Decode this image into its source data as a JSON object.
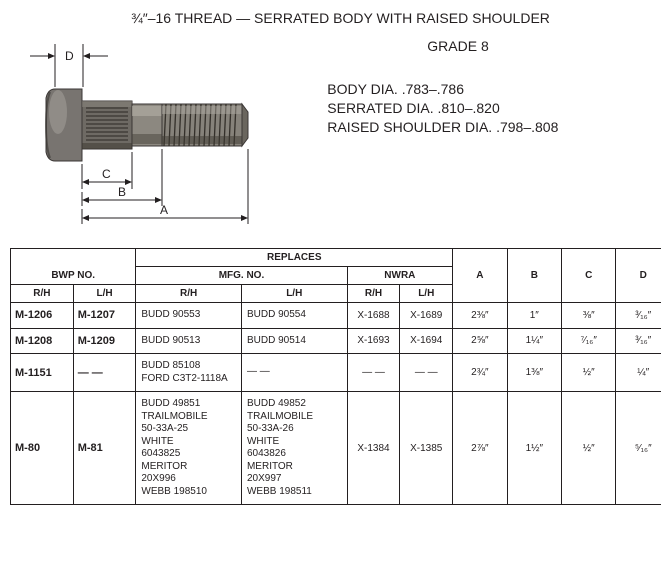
{
  "header": {
    "title": "¾″–16 THREAD — SERRATED BODY WITH RAISED SHOULDER",
    "grade": "GRADE 8",
    "spec1": "BODY DIA. .783–.786",
    "spec2": "SERRATED DIA. .810–.820",
    "spec3": "RAISED SHOULDER DIA. .798–.808"
  },
  "diagram": {
    "labelD": "D",
    "labelC": "C",
    "labelB": "B",
    "labelA": "A"
  },
  "table": {
    "headers": {
      "replaces": "REPLACES",
      "bwp": "BWP NO.",
      "mfg": "MFG. NO.",
      "nwra": "NWRA",
      "rh": "R/H",
      "lh": "L/H",
      "a": "A",
      "b": "B",
      "c": "C",
      "d": "D"
    },
    "rows": [
      {
        "bwp_rh": "M-1206",
        "bwp_lh": "M-1207",
        "mfg_rh": "BUDD 90553",
        "mfg_lh": "BUDD 90554",
        "nwra_rh": "X-1688",
        "nwra_lh": "X-1689",
        "a": "2⅜″",
        "b": "1″",
        "c": "⅜″",
        "d": "³⁄₁₆″"
      },
      {
        "bwp_rh": "M-1208",
        "bwp_lh": "M-1209",
        "mfg_rh": "BUDD 90513",
        "mfg_lh": "BUDD 90514",
        "nwra_rh": "X-1693",
        "nwra_lh": "X-1694",
        "a": "2⅝″",
        "b": "1¼″",
        "c": "⁷⁄₁₆″",
        "d": "³⁄₁₆″"
      },
      {
        "bwp_rh": "M-1151",
        "bwp_lh": "— —",
        "mfg_rh": "BUDD 85108\nFORD C3T2-1118A",
        "mfg_lh": "— —",
        "nwra_rh": "— —",
        "nwra_lh": "— —",
        "a": "2¾″",
        "b": "1⅜″",
        "c": "½″",
        "d": "¼″"
      },
      {
        "bwp_rh": "M-80",
        "bwp_lh": "M-81",
        "mfg_rh": "BUDD 49851\nTRAILMOBILE\n50-33A-25\nWHITE\n6043825\nMERITOR\n20X996\nWEBB 198510",
        "mfg_lh": "BUDD 49852\nTRAILMOBILE\n50-33A-26\nWHITE\n6043826\nMERITOR\n20X997\nWEBB 198511",
        "nwra_rh": "X-1384",
        "nwra_lh": "X-1385",
        "a": "2⅞″",
        "b": "1½″",
        "c": "½″",
        "d": "⁵⁄₁₆″"
      }
    ]
  }
}
